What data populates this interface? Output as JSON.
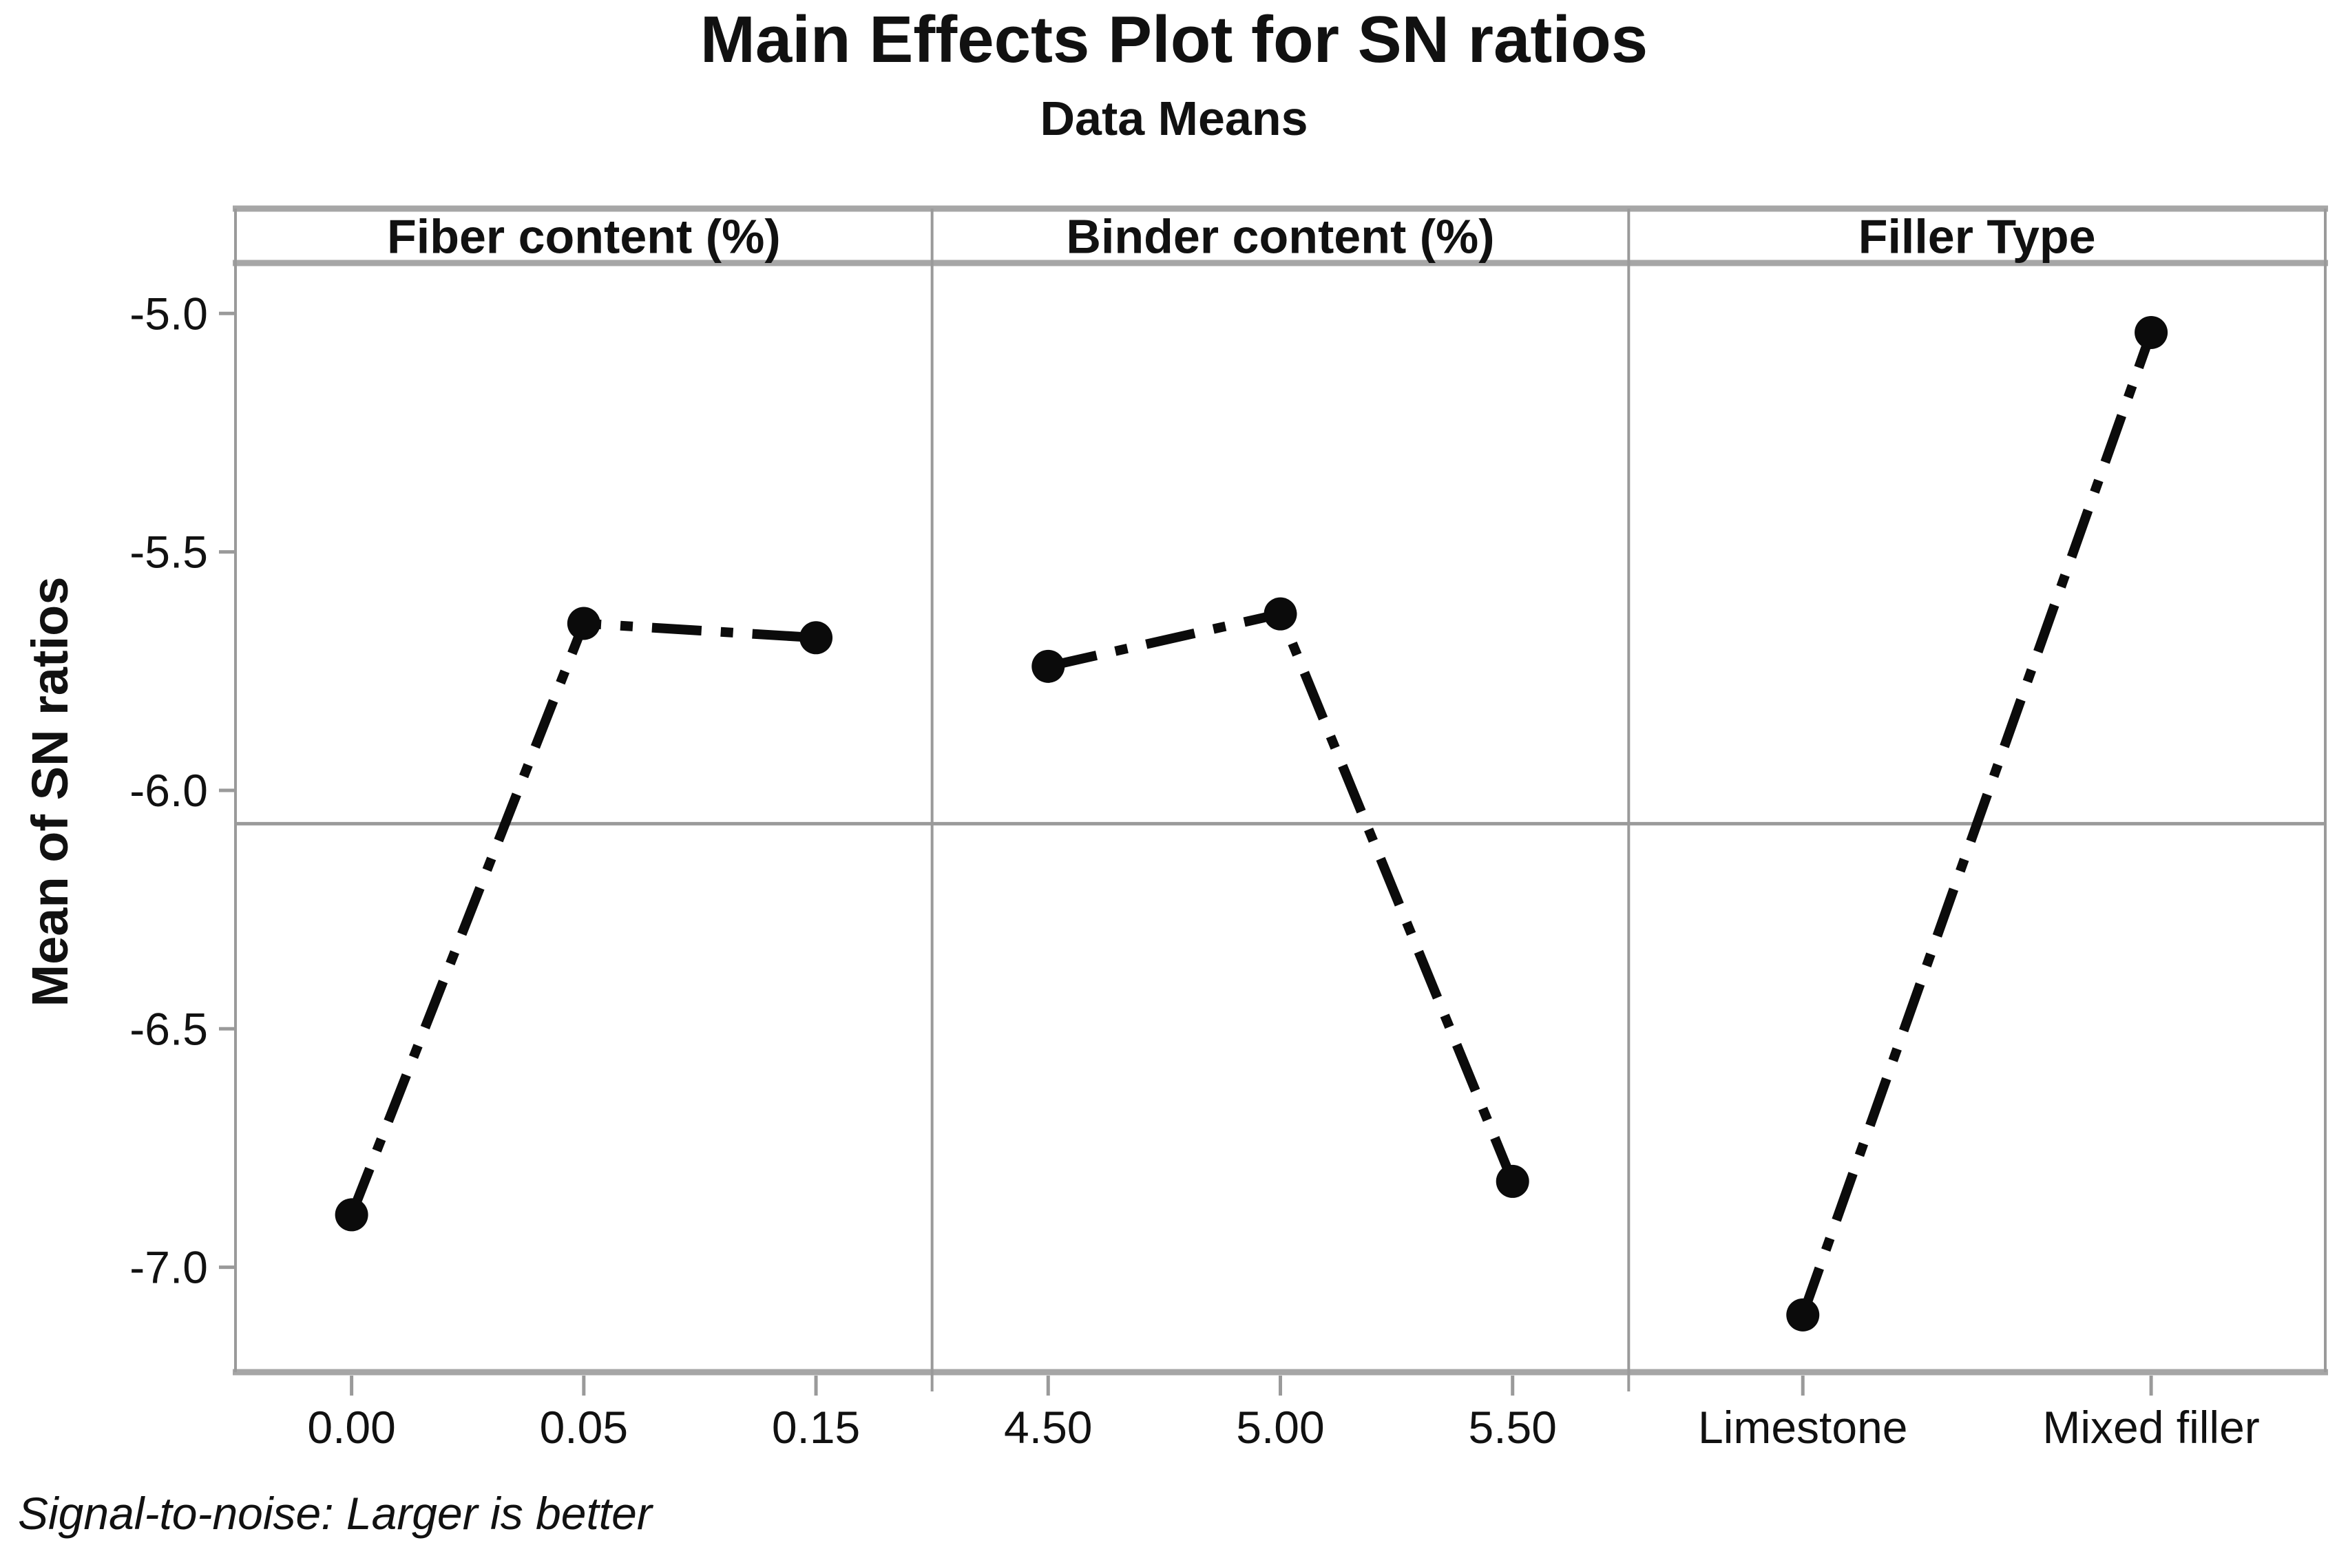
{
  "title": "Main Effects Plot for SN ratios",
  "subtitle": "Data Means",
  "footer_note": "Signal-to-noise: Larger is better",
  "colors": {
    "background": "#ffffff",
    "frame": "#9a9a9a",
    "band_bar": "#a6a6a6",
    "reference_line": "#9a9a9a",
    "series": "#0b0b0b",
    "text": "#111111"
  },
  "chart_data": {
    "type": "line",
    "style": "main-effects-panels",
    "title": "Main Effects Plot for SN ratios",
    "subtitle": "Data Means",
    "ylabel": "Mean of SN ratios",
    "xlabel": "",
    "ylim": [
      -7.22,
      -4.9
    ],
    "yticks": [
      -5.0,
      -5.5,
      -6.0,
      -6.5,
      -7.0
    ],
    "ytick_labels": [
      "-5.0",
      "-5.5",
      "-6.0",
      "-6.5",
      "-7.0"
    ],
    "reference_line": -6.07,
    "grid": false,
    "legend": false,
    "line_style": "dash-dot",
    "marker": "circle",
    "panels": [
      {
        "label": "Fiber content (%)",
        "categories": [
          "0.00",
          "0.05",
          "0.15"
        ],
        "values": [
          -6.89,
          -5.65,
          -5.68
        ]
      },
      {
        "label": "Binder content (%)",
        "categories": [
          "4.50",
          "5.00",
          "5.50"
        ],
        "values": [
          -5.74,
          -5.63,
          -6.82
        ]
      },
      {
        "label": "Filler Type",
        "categories": [
          "Limestone",
          "Mixed filler"
        ],
        "values": [
          -7.1,
          -5.04
        ]
      }
    ],
    "annotation": "Signal-to-noise: Larger is better"
  }
}
